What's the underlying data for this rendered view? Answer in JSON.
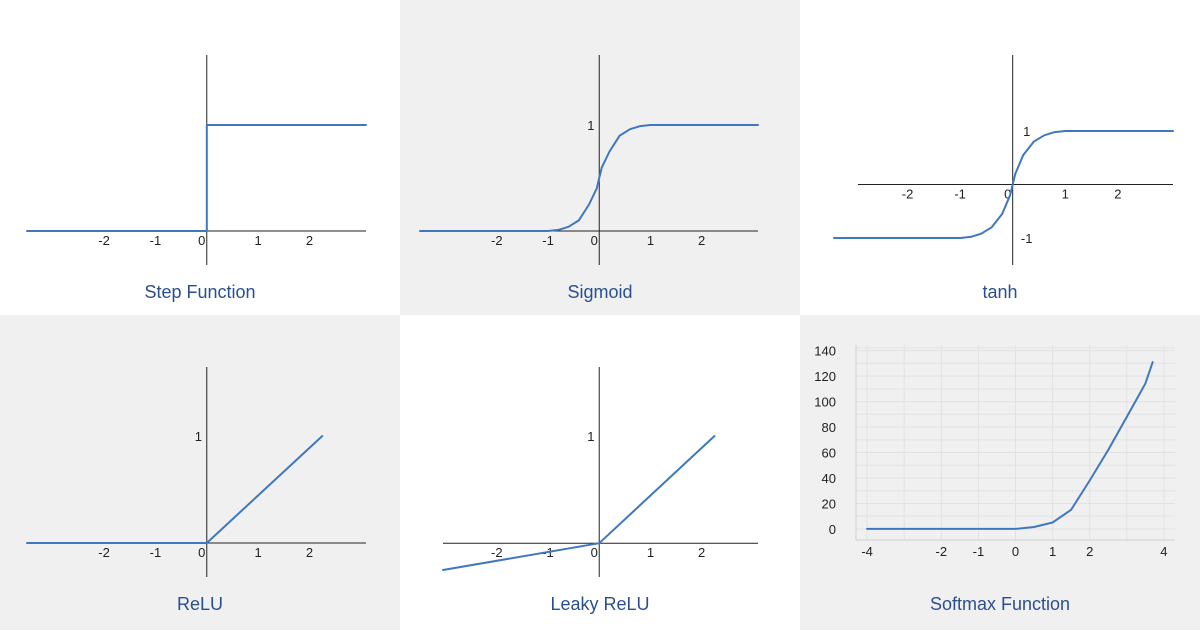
{
  "colors": {
    "line": "#3f78bf",
    "axis": "#222222",
    "caption": "#2a4f8f",
    "grid": "#e2e2e2",
    "shaded_panel": "#f1f0f0"
  },
  "chart_data": [
    {
      "type": "line",
      "id": "step",
      "title": "Step Function",
      "shaded": false,
      "xlim": [
        -3.5,
        3.1
      ],
      "ylim": [
        0,
        1.0
      ],
      "x_ticks": [
        -2,
        -1,
        0,
        1,
        2
      ],
      "x_tick_labels": [
        "-2",
        "-1",
        "0",
        "1",
        "2"
      ],
      "y_ticks": [],
      "y_tick_labels": [],
      "series": [
        {
          "points": [
            [
              -3.5,
              0
            ],
            [
              0,
              0
            ],
            [
              0,
              1
            ],
            [
              3.1,
              1
            ]
          ]
        }
      ]
    },
    {
      "type": "line",
      "id": "sigmoid",
      "title": "Sigmoid",
      "shaded": true,
      "xlim": [
        -3.5,
        3.1
      ],
      "ylim": [
        0,
        1
      ],
      "x_ticks": [
        -2,
        -1,
        0,
        1,
        2
      ],
      "x_tick_labels": [
        "-2",
        "-1",
        "0",
        "1",
        "2"
      ],
      "y_ticks": [
        1
      ],
      "y_tick_labels": [
        "1"
      ],
      "series": [
        {
          "points": [
            [
              -3.5,
              0
            ],
            [
              -1,
              0
            ],
            [
              -0.8,
              0.01
            ],
            [
              -0.6,
              0.04
            ],
            [
              -0.4,
              0.1
            ],
            [
              -0.2,
              0.25
            ],
            [
              -0.05,
              0.4
            ],
            [
              0,
              0.5
            ],
            [
              0.05,
              0.6
            ],
            [
              0.2,
              0.75
            ],
            [
              0.4,
              0.9
            ],
            [
              0.6,
              0.96
            ],
            [
              0.8,
              0.99
            ],
            [
              1,
              1
            ],
            [
              3.1,
              1
            ]
          ]
        }
      ]
    },
    {
      "type": "line",
      "id": "tanh",
      "title": "tanh",
      "shaded": false,
      "xlim": [
        -3.4,
        3.05
      ],
      "ylim": [
        -1,
        1
      ],
      "x_ticks": [
        -2,
        -1,
        0,
        1,
        2
      ],
      "x_tick_labels": [
        "-2",
        "-1",
        "0",
        "1",
        "2"
      ],
      "y_ticks": [
        1,
        -1
      ],
      "y_tick_labels": [
        "1",
        "-1"
      ],
      "series": [
        {
          "points": [
            [
              -3.4,
              -1
            ],
            [
              -1,
              -1
            ],
            [
              -0.8,
              -0.98
            ],
            [
              -0.6,
              -0.92
            ],
            [
              -0.4,
              -0.8
            ],
            [
              -0.2,
              -0.55
            ],
            [
              -0.05,
              -0.2
            ],
            [
              0,
              0
            ],
            [
              0.05,
              0.2
            ],
            [
              0.2,
              0.55
            ],
            [
              0.4,
              0.8
            ],
            [
              0.6,
              0.92
            ],
            [
              0.8,
              0.98
            ],
            [
              1,
              1
            ],
            [
              3.05,
              1
            ]
          ]
        }
      ]
    },
    {
      "type": "line",
      "id": "relu",
      "title": "ReLU",
      "shaded": true,
      "xlim": [
        -3.5,
        3.1
      ],
      "ylim": [
        0,
        1
      ],
      "x_ticks": [
        -2,
        -1,
        0,
        1,
        2
      ],
      "x_tick_labels": [
        "-2",
        "-1",
        "0",
        "1",
        "2"
      ],
      "y_ticks": [
        1
      ],
      "y_tick_labels": [
        "1"
      ],
      "series": [
        {
          "points": [
            [
              -3.5,
              0
            ],
            [
              0,
              0
            ],
            [
              2.25,
              1
            ]
          ]
        }
      ]
    },
    {
      "type": "line",
      "id": "leaky_relu",
      "title": "Leaky ReLU",
      "shaded": false,
      "xlim": [
        -3.05,
        3.1
      ],
      "ylim": [
        -0.25,
        1
      ],
      "x_ticks": [
        -2,
        -1,
        0,
        1,
        2
      ],
      "x_tick_labels": [
        "-2",
        "-1",
        "0",
        "1",
        "2"
      ],
      "y_ticks": [
        1
      ],
      "y_tick_labels": [
        "1"
      ],
      "series": [
        {
          "points": [
            [
              -3.05,
              -0.25
            ],
            [
              0,
              0
            ],
            [
              2.25,
              1
            ]
          ]
        }
      ]
    },
    {
      "type": "line",
      "id": "softmax",
      "title": "Softmax Function",
      "shaded": true,
      "xlim": [
        -4.3,
        4.3
      ],
      "ylim": [
        -4,
        146
      ],
      "x_ticks": [
        -4,
        -2,
        -1,
        0,
        1,
        2,
        4
      ],
      "x_tick_labels": [
        "-4",
        "-2",
        "-1",
        "0",
        "1",
        "2",
        "4"
      ],
      "y_ticks": [
        0,
        20,
        40,
        60,
        80,
        100,
        120,
        140
      ],
      "y_tick_labels": [
        "0",
        "20",
        "40",
        "60",
        "80",
        "100",
        "120",
        "140"
      ],
      "grid": true,
      "series": [
        {
          "points": [
            [
              -4,
              0
            ],
            [
              -3,
              0
            ],
            [
              -2,
              0
            ],
            [
              -1,
              0
            ],
            [
              0,
              0
            ],
            [
              0.5,
              1.5
            ],
            [
              1,
              5
            ],
            [
              1.5,
              15
            ],
            [
              2,
              38
            ],
            [
              2.5,
              62
            ],
            [
              3,
              88
            ],
            [
              3.5,
              114
            ],
            [
              3.7,
              131
            ]
          ]
        }
      ]
    }
  ]
}
